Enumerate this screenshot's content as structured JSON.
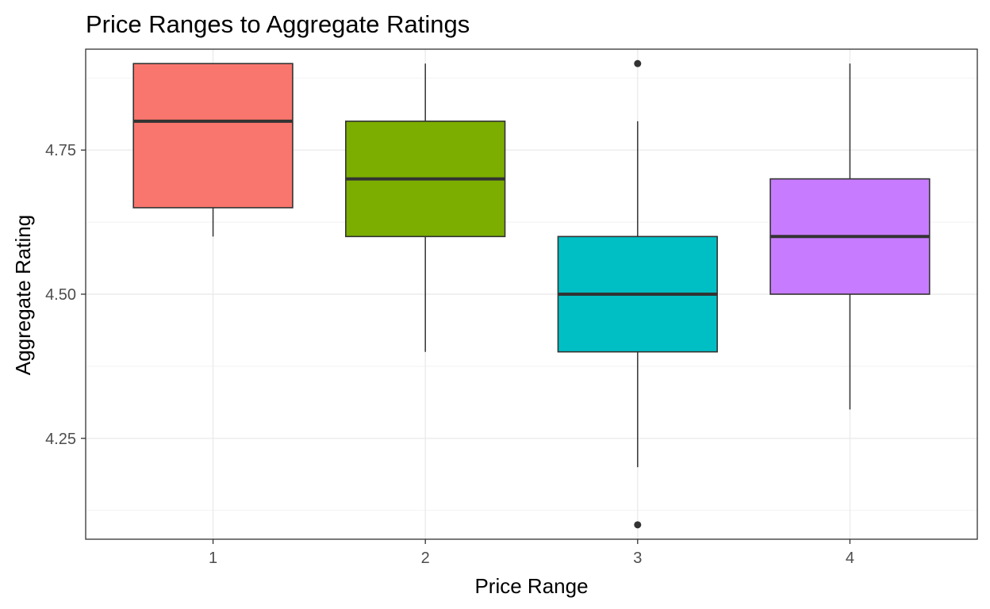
{
  "chart_data": {
    "type": "box",
    "title": "Price Ranges to Aggregate Ratings",
    "xlabel": "Price Range",
    "ylabel": "Aggregate Rating",
    "categories": [
      "1",
      "2",
      "3",
      "4"
    ],
    "y_ticks": [
      "4.25",
      "4.50",
      "4.75"
    ],
    "ylim": [
      4.075,
      4.925
    ],
    "grid": true,
    "legend": "none",
    "boxes": [
      {
        "category": "1",
        "min": 4.6,
        "q1": 4.65,
        "median": 4.8,
        "q3": 4.9,
        "max": 4.9,
        "outliers": [],
        "color": "#F8766D"
      },
      {
        "category": "2",
        "min": 4.4,
        "q1": 4.6,
        "median": 4.7,
        "q3": 4.8,
        "max": 4.9,
        "outliers": [],
        "color": "#7CAE00"
      },
      {
        "category": "3",
        "min": 4.2,
        "q1": 4.4,
        "median": 4.5,
        "q3": 4.6,
        "max": 4.8,
        "outliers": [
          4.9,
          4.1
        ],
        "color": "#00BFC4"
      },
      {
        "category": "4",
        "min": 4.3,
        "q1": 4.5,
        "median": 4.6,
        "q3": 4.7,
        "max": 4.9,
        "outliers": [],
        "color": "#C77CFF"
      }
    ]
  }
}
